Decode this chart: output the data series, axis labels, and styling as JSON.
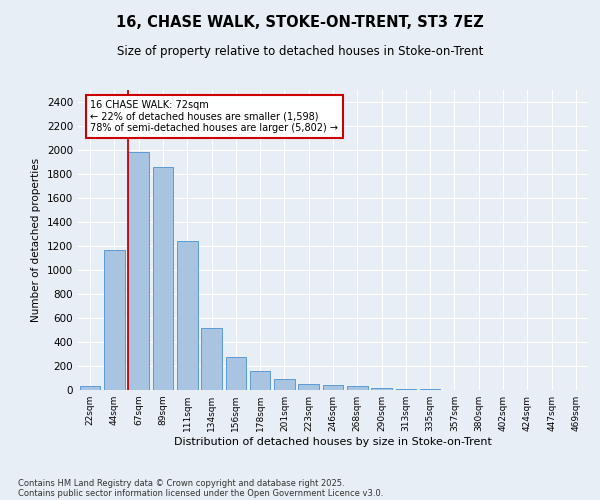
{
  "title1": "16, CHASE WALK, STOKE-ON-TRENT, ST3 7EZ",
  "title2": "Size of property relative to detached houses in Stoke-on-Trent",
  "xlabel": "Distribution of detached houses by size in Stoke-on-Trent",
  "ylabel": "Number of detached properties",
  "categories": [
    "22sqm",
    "44sqm",
    "67sqm",
    "89sqm",
    "111sqm",
    "134sqm",
    "156sqm",
    "178sqm",
    "201sqm",
    "223sqm",
    "246sqm",
    "268sqm",
    "290sqm",
    "313sqm",
    "335sqm",
    "357sqm",
    "380sqm",
    "402sqm",
    "424sqm",
    "447sqm",
    "469sqm"
  ],
  "values": [
    30,
    1170,
    1980,
    1860,
    1240,
    515,
    275,
    155,
    90,
    50,
    40,
    30,
    20,
    10,
    5,
    3,
    2,
    1,
    1,
    1,
    0
  ],
  "bar_color": "#a8c4e0",
  "bar_edge_color": "#5b9bd5",
  "vline_color": "#cc0000",
  "annotation_text": "16 CHASE WALK: 72sqm\n← 22% of detached houses are smaller (1,598)\n78% of semi-detached houses are larger (5,802) →",
  "annotation_box_color": "#ffffff",
  "annotation_box_edge": "#cc0000",
  "ylim": [
    0,
    2500
  ],
  "yticks": [
    0,
    200,
    400,
    600,
    800,
    1000,
    1200,
    1400,
    1600,
    1800,
    2000,
    2200,
    2400
  ],
  "bg_color": "#e8eef5",
  "grid_color": "#ffffff",
  "footer1": "Contains HM Land Registry data © Crown copyright and database right 2025.",
  "footer2": "Contains public sector information licensed under the Open Government Licence v3.0."
}
